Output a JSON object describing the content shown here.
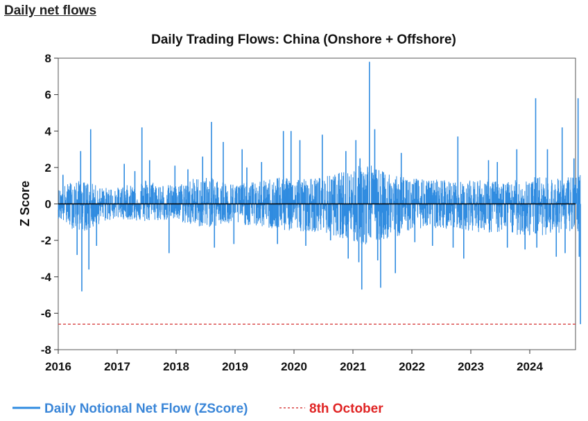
{
  "header": {
    "link_text": "Daily net flows"
  },
  "chart_data": {
    "type": "line",
    "title": "Daily Trading Flows: China (Onshore + Offshore)",
    "xlabel": "",
    "ylabel": "Z Score",
    "xlim": [
      2016.0,
      2024.92
    ],
    "ylim": [
      -8,
      8
    ],
    "x_ticks": [
      "2016",
      "2017",
      "2018",
      "2019",
      "2020",
      "2021",
      "2022",
      "2023",
      "2024"
    ],
    "y_ticks": [
      8,
      6,
      4,
      2,
      0,
      -2,
      -4,
      -6,
      -8
    ],
    "grid": false,
    "zero_line": true,
    "legend_position": "bottom-left",
    "colors": {
      "series": "#2f8be0",
      "reference": "#d84040",
      "zero": "#000000"
    },
    "series": [
      {
        "name": "Daily Notional Net Flow (ZScore)",
        "style": "solid",
        "envelope_x": [
          2016.0,
          2016.25,
          2016.5,
          2016.75,
          2017.0,
          2017.25,
          2017.5,
          2017.75,
          2018.0,
          2018.25,
          2018.5,
          2018.75,
          2019.0,
          2019.25,
          2019.5,
          2019.75,
          2020.0,
          2020.25,
          2020.5,
          2020.75,
          2021.0,
          2021.25,
          2021.5,
          2021.75,
          2022.0,
          2022.25,
          2022.5,
          2022.75,
          2023.0,
          2023.25,
          2023.5,
          2023.75,
          2024.0,
          2024.25,
          2024.5,
          2024.75,
          2024.88
        ],
        "envelope_high": [
          0.8,
          1.3,
          1.2,
          0.9,
          0.9,
          1.1,
          1.4,
          1.1,
          1.0,
          1.4,
          1.5,
          1.3,
          1.1,
          1.2,
          1.3,
          1.6,
          1.5,
          1.4,
          1.5,
          1.7,
          2.0,
          2.3,
          1.8,
          1.7,
          1.5,
          1.3,
          1.4,
          1.2,
          1.3,
          1.4,
          1.2,
          1.3,
          1.5,
          1.5,
          1.4,
          1.6,
          1.6
        ],
        "envelope_low": [
          -0.8,
          -1.4,
          -1.5,
          -1.0,
          -0.8,
          -0.9,
          -1.0,
          -0.9,
          -0.9,
          -1.2,
          -1.3,
          -1.2,
          -1.1,
          -1.2,
          -1.3,
          -1.5,
          -1.5,
          -1.5,
          -1.6,
          -1.8,
          -2.2,
          -2.3,
          -2.0,
          -1.8,
          -1.4,
          -1.3,
          -1.4,
          -1.3,
          -1.5,
          -1.6,
          -1.6,
          -1.7,
          -1.8,
          -1.7,
          -1.6,
          -1.7,
          -1.5
        ],
        "spikes": [
          {
            "x": 2016.08,
            "y": 1.6
          },
          {
            "x": 2016.38,
            "y": 2.9
          },
          {
            "x": 2016.4,
            "y": -4.8
          },
          {
            "x": 2016.32,
            "y": -2.8
          },
          {
            "x": 2016.52,
            "y": -3.6
          },
          {
            "x": 2016.55,
            "y": 4.1
          },
          {
            "x": 2016.65,
            "y": -2.3
          },
          {
            "x": 2017.12,
            "y": 2.2
          },
          {
            "x": 2017.3,
            "y": 1.8
          },
          {
            "x": 2017.42,
            "y": 4.2
          },
          {
            "x": 2017.55,
            "y": 2.4
          },
          {
            "x": 2017.88,
            "y": -2.7
          },
          {
            "x": 2017.98,
            "y": 2.1
          },
          {
            "x": 2018.2,
            "y": 1.9
          },
          {
            "x": 2018.45,
            "y": 2.6
          },
          {
            "x": 2018.6,
            "y": 4.5
          },
          {
            "x": 2018.65,
            "y": -2.4
          },
          {
            "x": 2018.8,
            "y": 3.4
          },
          {
            "x": 2018.98,
            "y": -2.2
          },
          {
            "x": 2019.12,
            "y": 3.0
          },
          {
            "x": 2019.2,
            "y": 2.0
          },
          {
            "x": 2019.45,
            "y": 2.3
          },
          {
            "x": 2019.72,
            "y": -2.2
          },
          {
            "x": 2019.82,
            "y": 4.0
          },
          {
            "x": 2019.95,
            "y": 4.0
          },
          {
            "x": 2020.1,
            "y": 3.5
          },
          {
            "x": 2020.2,
            "y": -2.3
          },
          {
            "x": 2020.48,
            "y": 3.8
          },
          {
            "x": 2020.62,
            "y": -2.0
          },
          {
            "x": 2020.88,
            "y": 2.9
          },
          {
            "x": 2020.92,
            "y": -3.0
          },
          {
            "x": 2021.05,
            "y": 3.5
          },
          {
            "x": 2021.1,
            "y": -3.2
          },
          {
            "x": 2021.12,
            "y": 2.5
          },
          {
            "x": 2021.15,
            "y": -4.7
          },
          {
            "x": 2021.28,
            "y": 7.8
          },
          {
            "x": 2021.37,
            "y": 4.1
          },
          {
            "x": 2021.42,
            "y": -3.1
          },
          {
            "x": 2021.47,
            "y": -4.6
          },
          {
            "x": 2021.72,
            "y": -3.8
          },
          {
            "x": 2021.82,
            "y": 2.8
          },
          {
            "x": 2022.05,
            "y": -2.1
          },
          {
            "x": 2022.35,
            "y": -2.3
          },
          {
            "x": 2022.7,
            "y": -2.4
          },
          {
            "x": 2022.78,
            "y": 3.7
          },
          {
            "x": 2022.88,
            "y": -3.0
          },
          {
            "x": 2023.3,
            "y": 2.4
          },
          {
            "x": 2023.45,
            "y": 2.3
          },
          {
            "x": 2023.62,
            "y": -2.4
          },
          {
            "x": 2023.78,
            "y": 3.0
          },
          {
            "x": 2023.92,
            "y": -2.5
          },
          {
            "x": 2024.1,
            "y": 5.8
          },
          {
            "x": 2024.12,
            "y": -2.4
          },
          {
            "x": 2024.3,
            "y": 3.0
          },
          {
            "x": 2024.45,
            "y": -2.9
          },
          {
            "x": 2024.55,
            "y": 4.2
          },
          {
            "x": 2024.6,
            "y": -2.7
          },
          {
            "x": 2024.75,
            "y": 2.5
          },
          {
            "x": 2024.82,
            "y": 5.8
          },
          {
            "x": 2024.84,
            "y": -2.9
          },
          {
            "x": 2024.86,
            "y": -6.6
          }
        ]
      },
      {
        "name": "8th October",
        "style": "dashed",
        "y": -6.6
      }
    ]
  }
}
